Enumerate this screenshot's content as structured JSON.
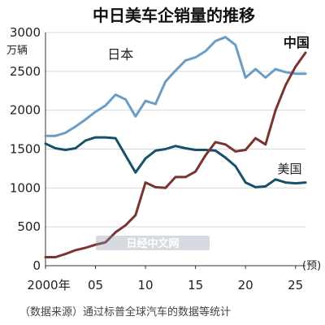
{
  "chart_data": {
    "type": "line",
    "title": "中日美车企销量的推移",
    "ylabel": "万辆",
    "x_ticks": [
      "2000年",
      "05",
      "10",
      "15",
      "20",
      "25"
    ],
    "x_tick_years": [
      2000,
      2005,
      2010,
      2015,
      2020,
      2025
    ],
    "forecast_label": "(预)",
    "xlim": [
      2000,
      2026
    ],
    "ylim": [
      0,
      3000
    ],
    "yticks": [
      0,
      500,
      1000,
      1500,
      2000,
      2500,
      3000
    ],
    "grid": true,
    "x": [
      2000,
      2001,
      2002,
      2003,
      2004,
      2005,
      2006,
      2007,
      2008,
      2009,
      2010,
      2011,
      2012,
      2013,
      2014,
      2015,
      2016,
      2017,
      2018,
      2019,
      2020,
      2021,
      2022,
      2023,
      2024,
      2025,
      2026
    ],
    "series": [
      {
        "name": "日本",
        "color": "#6b9dc4",
        "values": [
          1670,
          1670,
          1710,
          1790,
          1880,
          1980,
          2060,
          2200,
          2140,
          1920,
          2120,
          2080,
          2370,
          2510,
          2640,
          2680,
          2760,
          2890,
          2940,
          2840,
          2420,
          2530,
          2420,
          2530,
          2490,
          2470,
          2470
        ]
      },
      {
        "name": "美国",
        "color": "#16506a",
        "values": [
          1570,
          1510,
          1490,
          1510,
          1610,
          1650,
          1650,
          1640,
          1420,
          1200,
          1380,
          1480,
          1500,
          1540,
          1510,
          1490,
          1490,
          1480,
          1390,
          1280,
          1070,
          1010,
          1020,
          1110,
          1070,
          1060,
          1070
        ]
      },
      {
        "name": "中国",
        "color": "#7a3530",
        "values": [
          110,
          110,
          150,
          200,
          230,
          270,
          300,
          430,
          520,
          650,
          1070,
          1010,
          1000,
          1140,
          1140,
          1210,
          1420,
          1590,
          1560,
          1470,
          1490,
          1640,
          1560,
          2000,
          2320,
          2560,
          2740
        ]
      }
    ],
    "watermark": "日经中文网",
    "source_note": "（数据来源）通过标普全球汽车的数据等统计"
  }
}
